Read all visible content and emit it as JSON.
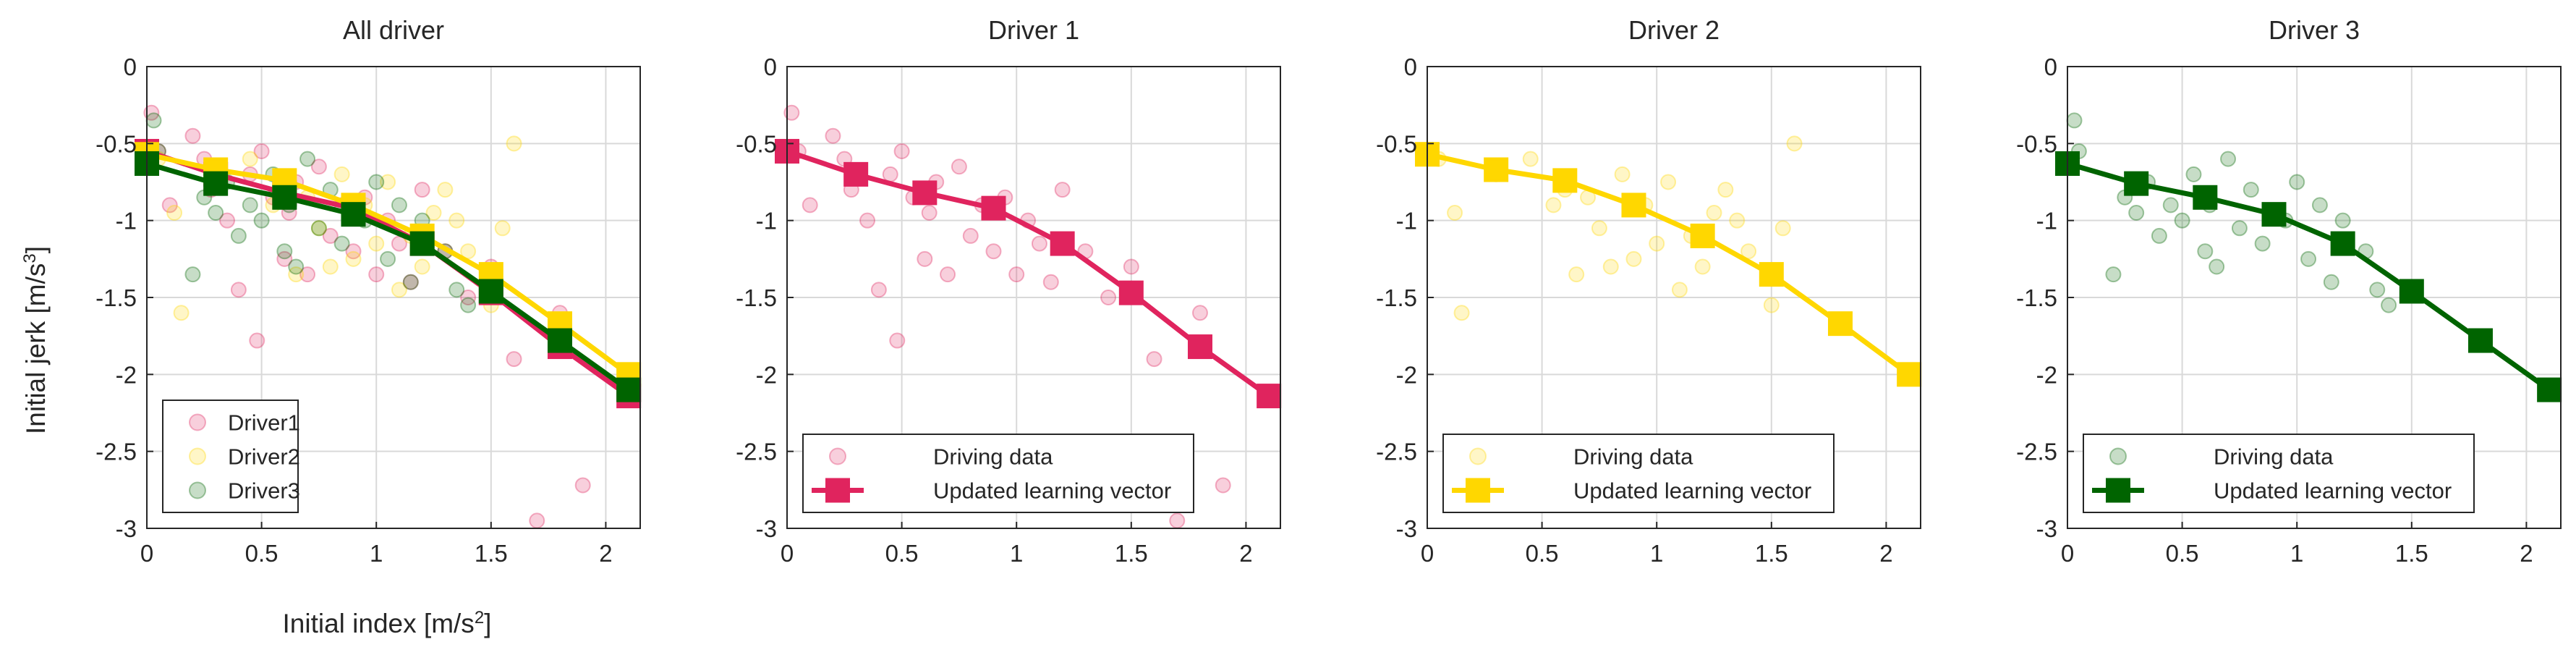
{
  "figure": {
    "ylabel": "Initial jerk [m/s3]",
    "ylabel_base": "Initial jerk [m/s",
    "ylabel_sup": "3",
    "ylabel_end": "]",
    "xlabel": "Initial index [m/s2]",
    "xlabel_base": "Initial index [m/s",
    "xlabel_sup": "2",
    "xlabel_end": "]"
  },
  "colors": {
    "driver1": "#e0245e",
    "driver2": "#ffd700",
    "driver3": "#006400"
  },
  "chart_data": [
    {
      "type": "scatter",
      "title": "All driver",
      "xlim": [
        0,
        2.15
      ],
      "ylim": [
        -3,
        0
      ],
      "xticks": [
        "0",
        "0.5",
        "1",
        "1.5",
        "2"
      ],
      "yticks": [
        "0",
        "-0.5",
        "-1",
        "-1.5",
        "-2",
        "-2.5",
        "-3"
      ],
      "grid": true,
      "legend": {
        "position": "bottom-left",
        "entries": [
          "Driver1",
          "Driver2",
          "Driver3"
        ]
      },
      "series": [
        {
          "name": "Driver1",
          "role": "scatter",
          "color": "#e0245e",
          "x": [
            0.02,
            0.05,
            0.1,
            0.2,
            0.25,
            0.28,
            0.35,
            0.4,
            0.45,
            0.48,
            0.5,
            0.55,
            0.6,
            0.62,
            0.65,
            0.7,
            0.75,
            0.8,
            0.85,
            0.9,
            0.95,
            1.0,
            1.05,
            1.1,
            1.15,
            1.2,
            1.3,
            1.4,
            1.5,
            1.6,
            1.7,
            1.8,
            1.9
          ],
          "y": [
            -0.3,
            -0.55,
            -0.9,
            -0.45,
            -0.6,
            -0.8,
            -1.0,
            -1.45,
            -0.7,
            -1.78,
            -0.55,
            -0.85,
            -1.25,
            -0.95,
            -0.75,
            -1.35,
            -0.65,
            -1.1,
            -0.9,
            -1.2,
            -0.85,
            -1.35,
            -1.0,
            -1.15,
            -1.4,
            -0.8,
            -1.2,
            -1.5,
            -1.3,
            -1.9,
            -2.95,
            -1.6,
            -2.72
          ]
        },
        {
          "name": "Driver2",
          "role": "scatter",
          "color": "#ffd700",
          "x": [
            0.05,
            0.12,
            0.15,
            0.3,
            0.45,
            0.55,
            0.6,
            0.65,
            0.7,
            0.75,
            0.8,
            0.85,
            0.9,
            0.95,
            1.0,
            1.05,
            1.1,
            1.15,
            1.2,
            1.25,
            1.3,
            1.35,
            1.4,
            1.5,
            1.55,
            1.6
          ],
          "y": [
            -0.6,
            -0.95,
            -1.6,
            -0.7,
            -0.6,
            -0.9,
            -0.8,
            -1.35,
            -0.85,
            -1.05,
            -1.3,
            -0.7,
            -1.25,
            -0.9,
            -1.15,
            -0.75,
            -1.45,
            -1.1,
            -1.3,
            -0.95,
            -0.8,
            -1.0,
            -1.2,
            -1.55,
            -1.05,
            -0.5
          ]
        },
        {
          "name": "Driver3",
          "role": "scatter",
          "color": "#006400",
          "x": [
            0.03,
            0.05,
            0.2,
            0.25,
            0.3,
            0.35,
            0.4,
            0.45,
            0.5,
            0.55,
            0.6,
            0.62,
            0.65,
            0.7,
            0.75,
            0.8,
            0.85,
            0.9,
            0.95,
            1.0,
            1.05,
            1.1,
            1.15,
            1.2,
            1.3,
            1.35,
            1.4
          ],
          "y": [
            -0.35,
            -0.55,
            -1.35,
            -0.85,
            -0.95,
            -0.75,
            -1.1,
            -0.9,
            -1.0,
            -0.7,
            -1.2,
            -0.9,
            -1.3,
            -0.6,
            -1.05,
            -0.8,
            -1.15,
            -0.95,
            -1.0,
            -0.75,
            -1.25,
            -0.9,
            -1.4,
            -1.0,
            -1.2,
            -1.45,
            -1.55
          ]
        },
        {
          "name": "Driver1 learning vector",
          "role": "line",
          "color": "#e0245e",
          "x": [
            0,
            0.3,
            0.6,
            0.9,
            1.2,
            1.5,
            1.8,
            2.1
          ],
          "y": [
            -0.55,
            -0.7,
            -0.82,
            -0.92,
            -1.15,
            -1.47,
            -1.82,
            -2.14
          ]
        },
        {
          "name": "Driver2 learning vector",
          "role": "line",
          "color": "#ffd700",
          "x": [
            0,
            0.3,
            0.6,
            0.9,
            1.2,
            1.5,
            1.8,
            2.1
          ],
          "y": [
            -0.57,
            -0.67,
            -0.74,
            -0.9,
            -1.1,
            -1.35,
            -1.67,
            -2.0
          ]
        },
        {
          "name": "Driver3 learning vector",
          "role": "line",
          "color": "#006400",
          "x": [
            0,
            0.3,
            0.6,
            0.9,
            1.2,
            1.5,
            1.8,
            2.1
          ],
          "y": [
            -0.63,
            -0.76,
            -0.85,
            -0.96,
            -1.15,
            -1.46,
            -1.78,
            -2.1
          ]
        }
      ]
    },
    {
      "type": "scatter",
      "title": "Driver 1",
      "xlim": [
        0,
        2.15
      ],
      "ylim": [
        -3,
        0
      ],
      "xticks": [
        "0",
        "0.5",
        "1",
        "1.5",
        "2"
      ],
      "yticks": [
        "0",
        "-0.5",
        "-1",
        "-1.5",
        "-2",
        "-2.5",
        "-3"
      ],
      "grid": true,
      "legend": {
        "position": "bottom-left",
        "entries": [
          "Driving data",
          "Updated learning vector"
        ]
      },
      "series": [
        {
          "name": "Driving data",
          "role": "scatter",
          "color": "#e0245e",
          "x": [
            0.02,
            0.05,
            0.1,
            0.2,
            0.25,
            0.28,
            0.35,
            0.4,
            0.45,
            0.48,
            0.5,
            0.55,
            0.6,
            0.62,
            0.65,
            0.7,
            0.75,
            0.8,
            0.85,
            0.9,
            0.95,
            1.0,
            1.05,
            1.1,
            1.15,
            1.2,
            1.3,
            1.4,
            1.5,
            1.6,
            1.7,
            1.8,
            1.9
          ],
          "y": [
            -0.3,
            -0.55,
            -0.9,
            -0.45,
            -0.6,
            -0.8,
            -1.0,
            -1.45,
            -0.7,
            -1.78,
            -0.55,
            -0.85,
            -1.25,
            -0.95,
            -0.75,
            -1.35,
            -0.65,
            -1.1,
            -0.9,
            -1.2,
            -0.85,
            -1.35,
            -1.0,
            -1.15,
            -1.4,
            -0.8,
            -1.2,
            -1.5,
            -1.3,
            -1.9,
            -2.95,
            -1.6,
            -2.72
          ]
        },
        {
          "name": "Updated learning vector",
          "role": "line",
          "color": "#e0245e",
          "x": [
            0,
            0.3,
            0.6,
            0.9,
            1.2,
            1.5,
            1.8,
            2.1
          ],
          "y": [
            -0.55,
            -0.7,
            -0.82,
            -0.92,
            -1.15,
            -1.47,
            -1.82,
            -2.14
          ]
        }
      ]
    },
    {
      "type": "scatter",
      "title": "Driver 2",
      "xlim": [
        0,
        2.15
      ],
      "ylim": [
        -3,
        0
      ],
      "xticks": [
        "0",
        "0.5",
        "1",
        "1.5",
        "2"
      ],
      "yticks": [
        "0",
        "-0.5",
        "-1",
        "-1.5",
        "-2",
        "-2.5",
        "-3"
      ],
      "grid": true,
      "legend": {
        "position": "bottom-left",
        "entries": [
          "Driving data",
          "Updated learning vector"
        ]
      },
      "series": [
        {
          "name": "Driving data",
          "role": "scatter",
          "color": "#ffd700",
          "x": [
            0.05,
            0.12,
            0.15,
            0.3,
            0.45,
            0.55,
            0.6,
            0.65,
            0.7,
            0.75,
            0.8,
            0.85,
            0.9,
            0.95,
            1.0,
            1.05,
            1.1,
            1.15,
            1.2,
            1.25,
            1.3,
            1.35,
            1.4,
            1.5,
            1.55,
            1.6
          ],
          "y": [
            -0.6,
            -0.95,
            -1.6,
            -0.7,
            -0.6,
            -0.9,
            -0.8,
            -1.35,
            -0.85,
            -1.05,
            -1.3,
            -0.7,
            -1.25,
            -0.9,
            -1.15,
            -0.75,
            -1.45,
            -1.1,
            -1.3,
            -0.95,
            -0.8,
            -1.0,
            -1.2,
            -1.55,
            -1.05,
            -0.5
          ]
        },
        {
          "name": "Updated learning vector",
          "role": "line",
          "color": "#ffd700",
          "x": [
            0,
            0.3,
            0.6,
            0.9,
            1.2,
            1.5,
            1.8,
            2.1
          ],
          "y": [
            -0.57,
            -0.67,
            -0.74,
            -0.9,
            -1.1,
            -1.35,
            -1.67,
            -2.0
          ]
        }
      ]
    },
    {
      "type": "scatter",
      "title": "Driver 3",
      "xlim": [
        0,
        2.15
      ],
      "ylim": [
        -3,
        0
      ],
      "xticks": [
        "0",
        "0.5",
        "1",
        "1.5",
        "2"
      ],
      "yticks": [
        "0",
        "-0.5",
        "-1",
        "-1.5",
        "-2",
        "-2.5",
        "-3"
      ],
      "grid": true,
      "legend": {
        "position": "bottom-left",
        "entries": [
          "Driving data",
          "Updated learning vector"
        ]
      },
      "series": [
        {
          "name": "Driving data",
          "role": "scatter",
          "color": "#006400",
          "x": [
            0.03,
            0.05,
            0.2,
            0.25,
            0.3,
            0.35,
            0.4,
            0.45,
            0.5,
            0.55,
            0.6,
            0.62,
            0.65,
            0.7,
            0.75,
            0.8,
            0.85,
            0.9,
            0.95,
            1.0,
            1.05,
            1.1,
            1.15,
            1.2,
            1.3,
            1.35,
            1.4
          ],
          "y": [
            -0.35,
            -0.55,
            -1.35,
            -0.85,
            -0.95,
            -0.75,
            -1.1,
            -0.9,
            -1.0,
            -0.7,
            -1.2,
            -0.9,
            -1.3,
            -0.6,
            -1.05,
            -0.8,
            -1.15,
            -0.95,
            -1.0,
            -0.75,
            -1.25,
            -0.9,
            -1.4,
            -1.0,
            -1.2,
            -1.45,
            -1.55
          ]
        },
        {
          "name": "Updated learning vector",
          "role": "line",
          "color": "#006400",
          "x": [
            0,
            0.3,
            0.6,
            0.9,
            1.2,
            1.5,
            1.8,
            2.1
          ],
          "y": [
            -0.63,
            -0.76,
            -0.85,
            -0.96,
            -1.15,
            -1.46,
            -1.78,
            -2.1
          ]
        }
      ]
    }
  ]
}
